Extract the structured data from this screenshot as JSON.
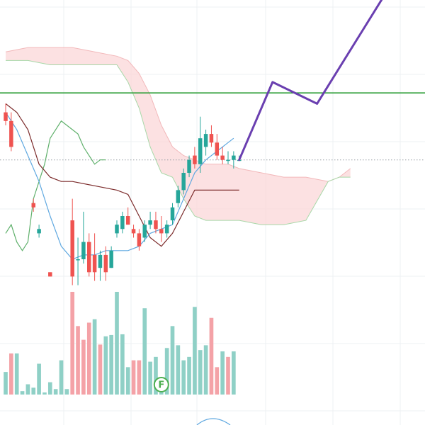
{
  "chart_data": {
    "type": "candlestick",
    "title": "",
    "xlabel": "",
    "ylabel": "",
    "ylim": [
      30,
      110
    ],
    "grid": true,
    "colors": {
      "up": "#26a69a",
      "down": "#ef5350",
      "up_volume": "#8fd0c6",
      "down_volume": "#f4a2a7",
      "cloud": "#fbd7d8",
      "cloud_edge_upper": "#f2b8ba",
      "cloud_edge_lower": "#a8d8a8",
      "base_line": "#7b2a2a",
      "conversion_line": "#5fa8e0",
      "lagging_line": "#5fb06b",
      "horizontal_level": "#2e9e38",
      "projection": "#6a3fb0",
      "earnings_badge": "#4caf50"
    },
    "candles": [
      {
        "x": 0,
        "open": 84,
        "high": 86,
        "low": 81,
        "close": 82
      },
      {
        "x": 1,
        "open": 82,
        "high": 84,
        "low": 75,
        "close": 76
      },
      {
        "x": 5,
        "open": 63,
        "high": 64,
        "low": 61,
        "close": 62
      },
      {
        "x": 6,
        "open": 56,
        "high": 58,
        "low": 55,
        "close": 57
      },
      {
        "x": 8,
        "open": 47,
        "high": 47,
        "low": 46,
        "close": 46
      },
      {
        "x": 12,
        "open": 59,
        "high": 64,
        "low": 44,
        "close": 46
      },
      {
        "x": 13,
        "open": 50,
        "high": 55,
        "low": 44,
        "close": 50
      },
      {
        "x": 14,
        "open": 50,
        "high": 61,
        "low": 49,
        "close": 54
      },
      {
        "x": 15,
        "open": 54,
        "high": 56,
        "low": 46,
        "close": 47
      },
      {
        "x": 16,
        "open": 51,
        "high": 56,
        "low": 45,
        "close": 47
      },
      {
        "x": 17,
        "open": 48,
        "high": 52,
        "low": 45,
        "close": 51
      },
      {
        "x": 18,
        "open": 51,
        "high": 53,
        "low": 45,
        "close": 47
      },
      {
        "x": 19,
        "open": 48,
        "high": 53,
        "low": 48,
        "close": 52
      },
      {
        "x": 20,
        "open": 56,
        "high": 59,
        "low": 55,
        "close": 58
      },
      {
        "x": 21,
        "open": 57,
        "high": 61,
        "low": 56,
        "close": 60
      },
      {
        "x": 22,
        "open": 60,
        "high": 62,
        "low": 58,
        "close": 58
      },
      {
        "x": 23,
        "open": 57,
        "high": 58,
        "low": 55,
        "close": 56
      },
      {
        "x": 24,
        "open": 56,
        "high": 57,
        "low": 52,
        "close": 53
      },
      {
        "x": 25,
        "open": 55,
        "high": 59,
        "low": 54,
        "close": 58
      },
      {
        "x": 26,
        "open": 58,
        "high": 61,
        "low": 57,
        "close": 59
      },
      {
        "x": 27,
        "open": 59,
        "high": 61,
        "low": 56,
        "close": 57
      },
      {
        "x": 28,
        "open": 57,
        "high": 60,
        "low": 54,
        "close": 56
      },
      {
        "x": 29,
        "open": 56,
        "high": 59,
        "low": 55,
        "close": 58
      },
      {
        "x": 30,
        "open": 59,
        "high": 63,
        "low": 58,
        "close": 62
      },
      {
        "x": 31,
        "open": 63,
        "high": 67,
        "low": 62,
        "close": 66
      },
      {
        "x": 32,
        "open": 66,
        "high": 71,
        "low": 65,
        "close": 70
      },
      {
        "x": 33,
        "open": 70,
        "high": 74,
        "low": 69,
        "close": 73
      },
      {
        "x": 34,
        "open": 74,
        "high": 76,
        "low": 71,
        "close": 72
      },
      {
        "x": 35,
        "open": 72,
        "high": 83,
        "low": 70,
        "close": 78
      },
      {
        "x": 36,
        "open": 76,
        "high": 80,
        "low": 74,
        "close": 79
      },
      {
        "x": 37,
        "open": 79,
        "high": 81,
        "low": 76,
        "close": 77
      },
      {
        "x": 38,
        "open": 77,
        "high": 79,
        "low": 73,
        "close": 74
      },
      {
        "x": 39,
        "open": 74,
        "high": 76,
        "low": 72,
        "close": 73
      },
      {
        "x": 40,
        "open": 73,
        "high": 75,
        "low": 72,
        "close": 73
      },
      {
        "x": 41,
        "open": 73,
        "high": 75,
        "low": 71,
        "close": 74
      },
      {
        "x": 42,
        "open": 73,
        "high": 74,
        "low": 73,
        "close": 73
      }
    ],
    "volume": {
      "ylim": [
        0,
        150
      ],
      "bars": [
        {
          "x": 0,
          "value": 33,
          "dir": "up"
        },
        {
          "x": 1,
          "value": 60,
          "dir": "down"
        },
        {
          "x": 2,
          "value": 60,
          "dir": "up"
        },
        {
          "x": 3,
          "value": 5,
          "dir": "up"
        },
        {
          "x": 4,
          "value": 15,
          "dir": "up"
        },
        {
          "x": 5,
          "value": 10,
          "dir": "up"
        },
        {
          "x": 6,
          "value": 45,
          "dir": "up"
        },
        {
          "x": 7,
          "value": 3,
          "dir": "up"
        },
        {
          "x": 8,
          "value": 18,
          "dir": "up"
        },
        {
          "x": 9,
          "value": 8,
          "dir": "up"
        },
        {
          "x": 10,
          "value": 50,
          "dir": "up"
        },
        {
          "x": 11,
          "value": 8,
          "dir": "up"
        },
        {
          "x": 12,
          "value": 150,
          "dir": "down"
        },
        {
          "x": 13,
          "value": 100,
          "dir": "down"
        },
        {
          "x": 14,
          "value": 80,
          "dir": "down"
        },
        {
          "x": 15,
          "value": 105,
          "dir": "down"
        },
        {
          "x": 16,
          "value": 110,
          "dir": "up"
        },
        {
          "x": 17,
          "value": 73,
          "dir": "down"
        },
        {
          "x": 18,
          "value": 85,
          "dir": "up"
        },
        {
          "x": 19,
          "value": 87,
          "dir": "up"
        },
        {
          "x": 20,
          "value": 150,
          "dir": "up"
        },
        {
          "x": 21,
          "value": 88,
          "dir": "up"
        },
        {
          "x": 22,
          "value": 40,
          "dir": "up"
        },
        {
          "x": 23,
          "value": 50,
          "dir": "down"
        },
        {
          "x": 24,
          "value": 50,
          "dir": "down"
        },
        {
          "x": 25,
          "value": 126,
          "dir": "up"
        },
        {
          "x": 26,
          "value": 48,
          "dir": "up"
        },
        {
          "x": 27,
          "value": 55,
          "dir": "up"
        },
        {
          "x": 28,
          "value": 25,
          "dir": "up"
        },
        {
          "x": 29,
          "value": 68,
          "dir": "up"
        },
        {
          "x": 30,
          "value": 100,
          "dir": "up"
        },
        {
          "x": 31,
          "value": 72,
          "dir": "up"
        },
        {
          "x": 32,
          "value": 50,
          "dir": "up"
        },
        {
          "x": 33,
          "value": 55,
          "dir": "up"
        },
        {
          "x": 34,
          "value": 128,
          "dir": "up"
        },
        {
          "x": 35,
          "value": 65,
          "dir": "up"
        },
        {
          "x": 36,
          "value": 72,
          "dir": "up"
        },
        {
          "x": 37,
          "value": 112,
          "dir": "down"
        },
        {
          "x": 38,
          "value": 40,
          "dir": "down"
        },
        {
          "x": 39,
          "value": 63,
          "dir": "up"
        },
        {
          "x": 40,
          "value": 55,
          "dir": "down"
        },
        {
          "x": 41,
          "value": 63,
          "dir": "up"
        }
      ]
    },
    "ichimoku": {
      "cloud_upper": [
        [
          0,
          98
        ],
        [
          4,
          99
        ],
        [
          8,
          99
        ],
        [
          12,
          99
        ],
        [
          16,
          98
        ],
        [
          20,
          97
        ],
        [
          22,
          96
        ],
        [
          24,
          93
        ],
        [
          26,
          88
        ],
        [
          28,
          81
        ],
        [
          30,
          76
        ],
        [
          32,
          74
        ],
        [
          34,
          73
        ],
        [
          36,
          72
        ],
        [
          38,
          72
        ],
        [
          40,
          72
        ],
        [
          42,
          71
        ],
        [
          46,
          70
        ],
        [
          50,
          69
        ],
        [
          54,
          69
        ],
        [
          58,
          68
        ],
        [
          60,
          69
        ],
        [
          62,
          71
        ]
      ],
      "cloud_lower": [
        [
          0,
          96
        ],
        [
          4,
          96
        ],
        [
          8,
          95
        ],
        [
          12,
          95
        ],
        [
          16,
          95
        ],
        [
          20,
          95
        ],
        [
          22,
          91
        ],
        [
          24,
          85
        ],
        [
          26,
          76
        ],
        [
          28,
          70
        ],
        [
          30,
          69
        ],
        [
          32,
          64
        ],
        [
          34,
          60
        ],
        [
          36,
          59
        ],
        [
          38,
          59
        ],
        [
          40,
          59
        ],
        [
          42,
          59
        ],
        [
          46,
          58
        ],
        [
          50,
          58
        ],
        [
          54,
          59
        ],
        [
          58,
          68
        ],
        [
          60,
          69
        ],
        [
          62,
          69
        ]
      ],
      "base_line": [
        [
          0,
          86
        ],
        [
          2,
          84
        ],
        [
          4,
          80
        ],
        [
          6,
          72
        ],
        [
          8,
          69
        ],
        [
          10,
          68
        ],
        [
          12,
          68
        ],
        [
          16,
          67
        ],
        [
          20,
          66
        ],
        [
          22,
          65
        ],
        [
          24,
          60
        ],
        [
          26,
          55
        ],
        [
          28,
          53
        ],
        [
          30,
          56
        ],
        [
          32,
          61
        ],
        [
          34,
          66
        ],
        [
          36,
          66
        ],
        [
          40,
          66
        ],
        [
          42,
          66
        ]
      ],
      "conversion_line": [
        [
          0,
          84
        ],
        [
          2,
          80
        ],
        [
          4,
          74
        ],
        [
          6,
          68
        ],
        [
          8,
          60
        ],
        [
          10,
          53
        ],
        [
          12,
          50
        ],
        [
          14,
          51
        ],
        [
          16,
          51
        ],
        [
          18,
          52
        ],
        [
          20,
          52
        ],
        [
          22,
          52
        ],
        [
          24,
          53
        ],
        [
          26,
          56
        ],
        [
          28,
          57
        ],
        [
          30,
          58
        ],
        [
          32,
          64
        ],
        [
          34,
          70
        ],
        [
          36,
          73
        ],
        [
          38,
          75
        ],
        [
          40,
          77
        ],
        [
          41,
          78
        ]
      ],
      "lagging_line": [
        [
          0,
          56
        ],
        [
          1,
          58
        ],
        [
          2,
          54
        ],
        [
          3,
          52
        ],
        [
          4,
          54
        ],
        [
          5,
          64
        ],
        [
          6,
          68
        ],
        [
          7,
          72
        ],
        [
          8,
          78
        ],
        [
          10,
          82
        ],
        [
          12,
          80
        ],
        [
          13,
          79
        ],
        [
          14,
          76
        ],
        [
          16,
          72
        ],
        [
          17,
          73
        ],
        [
          18,
          73
        ]
      ]
    },
    "level": 88.5,
    "projection": [
      [
        42,
        73
      ],
      [
        48,
        91
      ],
      [
        56,
        86
      ],
      [
        70,
        115
      ]
    ],
    "current_price": 73,
    "annotations": [
      {
        "x": 28,
        "text": "F"
      }
    ]
  }
}
